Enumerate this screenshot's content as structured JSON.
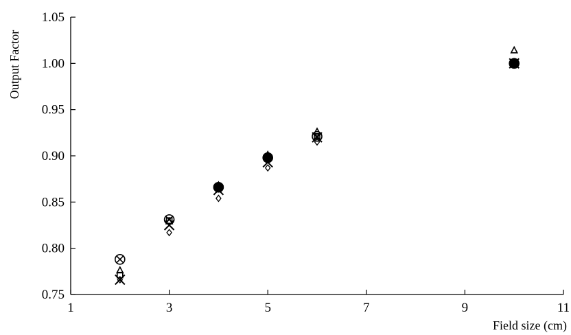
{
  "chart_data": {
    "type": "scatter",
    "title": "",
    "xlabel": "Field size (cm)",
    "ylabel": "Output Factor",
    "xlim": [
      1,
      11
    ],
    "ylim": [
      0.75,
      1.05
    ],
    "xticks": [
      "1",
      "3",
      "5",
      "7",
      "9",
      "11"
    ],
    "yticks": [
      "0.75",
      "0.80",
      "0.85",
      "0.90",
      "0.95",
      "1.00",
      "1.05"
    ],
    "grid": false,
    "legend": "none",
    "series": [
      {
        "marker": "circle-x",
        "points": [
          [
            2,
            0.788
          ],
          [
            3,
            0.831
          ],
          [
            4,
            0.866
          ],
          [
            5,
            0.898
          ],
          [
            6,
            0.921
          ],
          [
            10,
            1.0
          ]
        ]
      },
      {
        "marker": "triangle",
        "points": [
          [
            2,
            0.776
          ],
          [
            3,
            0.829
          ],
          [
            4,
            0.868
          ],
          [
            5,
            0.901
          ],
          [
            6,
            0.926
          ],
          [
            10,
            1.014
          ]
        ]
      },
      {
        "marker": "square",
        "points": [
          [
            2,
            0.771
          ],
          [
            3,
            0.83
          ],
          [
            4,
            0.866
          ],
          [
            5,
            0.897
          ],
          [
            6,
            0.921
          ],
          [
            10,
            1.0
          ]
        ]
      },
      {
        "marker": "x",
        "points": [
          [
            2,
            0.766
          ],
          [
            3,
            0.825
          ],
          [
            4,
            0.863
          ],
          [
            5,
            0.893
          ],
          [
            6,
            0.92
          ],
          [
            10,
            1.0
          ]
        ]
      },
      {
        "marker": "diamond",
        "points": [
          [
            2,
            0.766
          ],
          [
            3,
            0.817
          ],
          [
            4,
            0.854
          ],
          [
            5,
            0.887
          ],
          [
            6,
            0.915
          ],
          [
            10,
            1.0
          ]
        ]
      },
      {
        "marker": "filled-circle",
        "points": [
          [
            4,
            0.866
          ],
          [
            5,
            0.898
          ],
          [
            10,
            1.0
          ]
        ]
      }
    ]
  }
}
